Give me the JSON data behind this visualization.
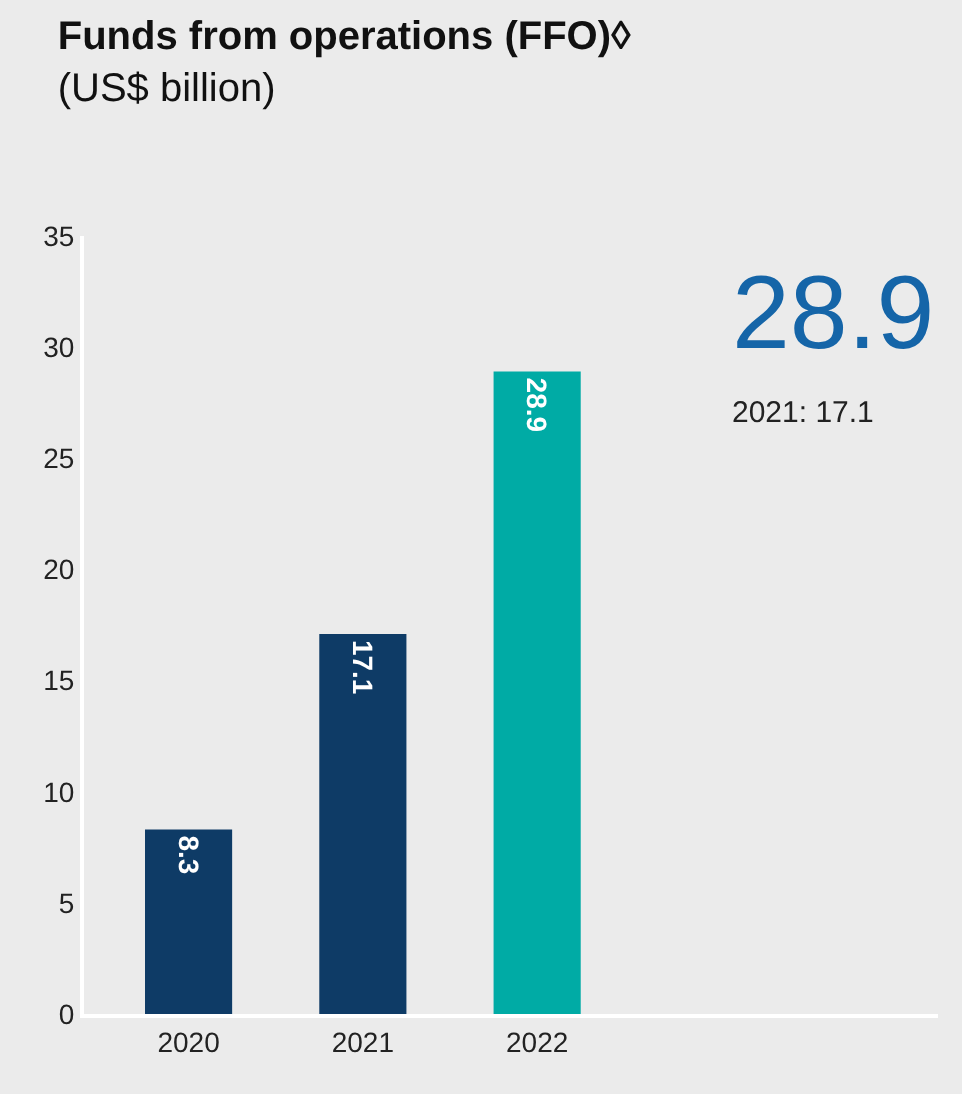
{
  "chart_data": {
    "type": "bar",
    "title": "Funds from operations (FFO)◊",
    "subtitle": "(US$ billion)",
    "categories": [
      "2020",
      "2021",
      "2022"
    ],
    "values": [
      8.3,
      17.1,
      28.9
    ],
    "colors": [
      "#0e3b66",
      "#0e3b66",
      "#00aba5"
    ],
    "ylim": [
      0,
      35
    ],
    "yticks": [
      0,
      5,
      10,
      15,
      20,
      25,
      30,
      35
    ],
    "grid": false,
    "legend": false,
    "data_labels": true,
    "annotations": [
      "28.9",
      "2021: 17.1"
    ]
  }
}
